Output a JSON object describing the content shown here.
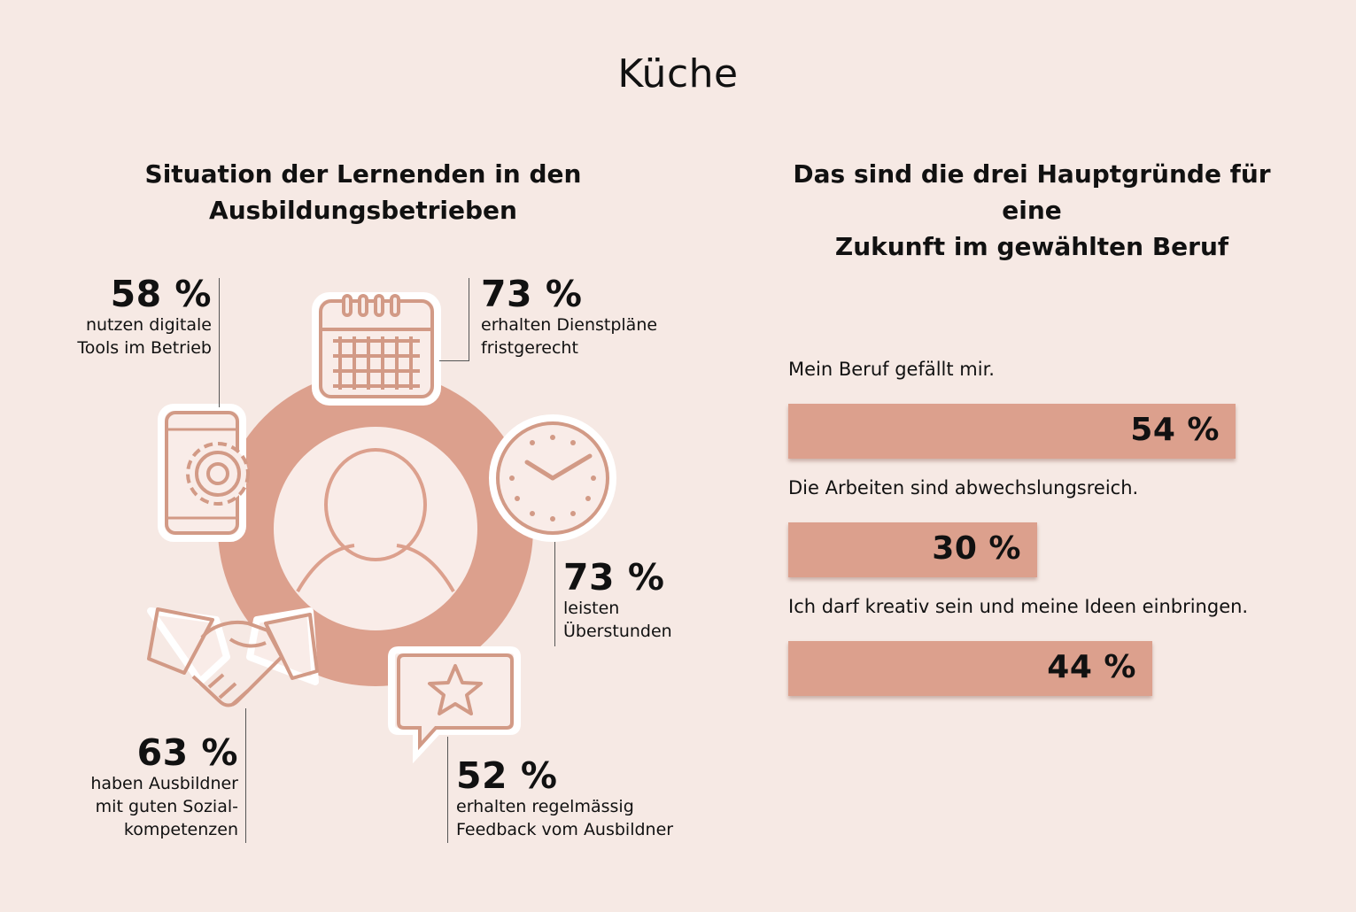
{
  "title": "Küche",
  "left": {
    "title_line1": "Situation der Lernenden in den",
    "title_line2": "Ausbildungsbetrieben",
    "stats": [
      {
        "value": "58 %",
        "line1": "nutzen digitale",
        "line2": "Tools im Betrieb",
        "icon": "smartphone-gear-icon"
      },
      {
        "value": "73 %",
        "line1": "erhalten Dienstpläne",
        "line2": "fristgerecht",
        "icon": "calendar-icon"
      },
      {
        "value": "73 %",
        "line1": "leisten",
        "line2": "Überstunden",
        "icon": "clock-icon"
      },
      {
        "value": "52 %",
        "line1": "erhalten regelmässig",
        "line2": "Feedback vom Ausbildner",
        "icon": "star-speech-bubble-icon"
      },
      {
        "value": "63 %",
        "line1": "haben Ausbildner",
        "line2": "mit guten Sozial-",
        "line3": "kompetenzen",
        "icon": "handshake-icon"
      }
    ],
    "center_icon": "person-icon"
  },
  "right": {
    "title_line1": "Das sind die drei Hauptgründe für eine",
    "title_line2": "Zukunft im gewählten Beruf"
  },
  "chart_data": {
    "type": "bar",
    "orientation": "horizontal",
    "categories": [
      "Mein Beruf gefällt mir.",
      "Die Arbeiten sind abwechslungsreich.",
      "Ich darf kreativ sein und meine Ideen einbringen."
    ],
    "values": [
      54,
      30,
      44
    ],
    "value_labels": [
      "54 %",
      "30 %",
      "44 %"
    ],
    "unit": "%",
    "xlim": [
      0,
      100
    ],
    "grid": false,
    "bar_color": "#dca08d"
  },
  "colors": {
    "background": "#f6e9e4",
    "accent": "#dca08d",
    "icon_stroke": "#d29a86"
  }
}
